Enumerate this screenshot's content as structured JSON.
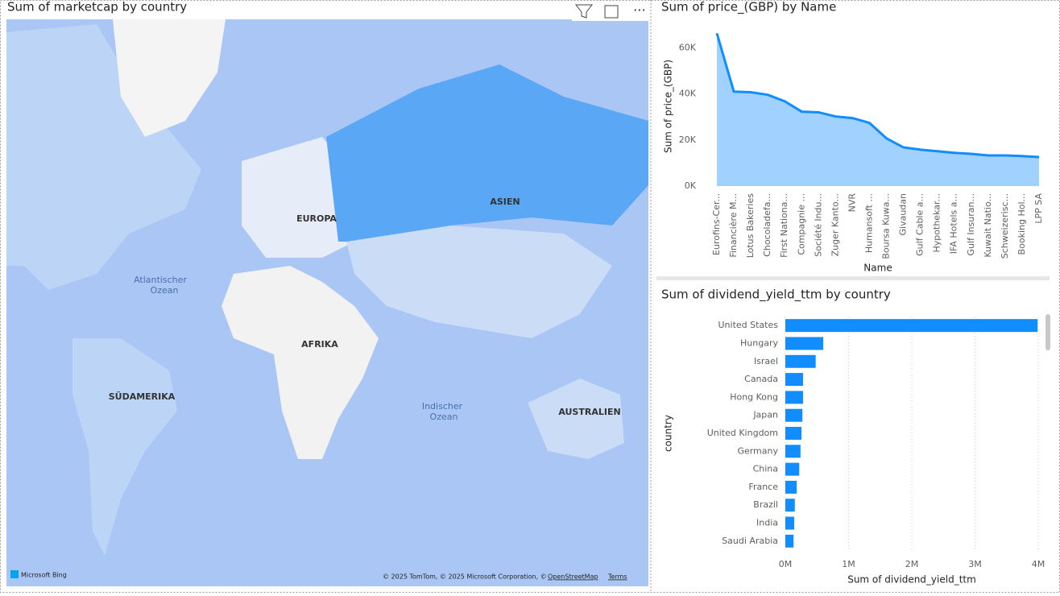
{
  "map": {
    "title": "Sum of marketcap by country",
    "labels": [
      "EUROPA",
      "ASIEN",
      "AFRIKA",
      "SÜDAMERIKA",
      "AUSTRALIEN"
    ],
    "oceans": [
      [
        "Atlantischer",
        "Ozean"
      ],
      [
        "Indischer",
        "Ozean"
      ]
    ],
    "brand": "Microsoft Bing",
    "attribution": "© 2025 TomTom, © 2025 Microsoft Corporation, ©",
    "osm": "OpenStreetMap",
    "terms": "Terms"
  },
  "chart_data": [
    {
      "type": "area",
      "title": "Sum of price_(GBP) by Name",
      "x_label": "Name",
      "y_label": "Sum of price_(GBP)",
      "categories": [
        "Eurofins-Cer...",
        "Financière M...",
        "Lotus Bakeries",
        "Chocoladefa...",
        "First Nationa...",
        "Compagnie ...",
        "Société Indu...",
        "Zuger Kanto...",
        "NVR",
        "Humansoft ...",
        "Boursa Kuwa...",
        "Givaudan",
        "Gulf Cable a...",
        "Hypothekar...",
        "IFA Hotels a...",
        "Gulf Insuran...",
        "Kuwait Natio...",
        "Schweizerisc...",
        "Booking Hol...",
        "LPP SA"
      ],
      "values": [
        66300,
        41000,
        40700,
        39600,
        36800,
        32300,
        32000,
        30200,
        29500,
        27400,
        20700,
        16800,
        15800,
        15100,
        14400,
        14000,
        13300,
        13300,
        13000,
        12600
      ],
      "color": "#118dff",
      "ylim": [
        0,
        72000
      ],
      "yticks": [
        {
          "value": 0,
          "label": "0K"
        },
        {
          "value": 20000,
          "label": "20K"
        },
        {
          "value": 40000,
          "label": "40K"
        },
        {
          "value": 60000,
          "label": "60K"
        }
      ]
    },
    {
      "type": "hbar",
      "title": "Sum of dividend_yield_ttm by country",
      "x_label": "Sum of dividend_yield_ttm",
      "y_label": "country",
      "categories": [
        "United States",
        "Hungary",
        "Israel",
        "Canada",
        "Hong Kong",
        "Japan",
        "United Kingdom",
        "Germany",
        "China",
        "France",
        "Brazil",
        "India",
        "Saudi Arabia"
      ],
      "values": [
        3990000,
        600000,
        480000,
        280000,
        280000,
        270000,
        255000,
        240000,
        220000,
        180000,
        150000,
        140000,
        130000
      ],
      "color": "#118dff",
      "xlim": [
        0,
        4000000
      ],
      "xticks": [
        {
          "value": 0,
          "label": "0M"
        },
        {
          "value": 1000000,
          "label": "1M"
        },
        {
          "value": 2000000,
          "label": "2M"
        },
        {
          "value": 3000000,
          "label": "3M"
        },
        {
          "value": 4000000,
          "label": "4M"
        }
      ],
      "grid": true
    }
  ]
}
